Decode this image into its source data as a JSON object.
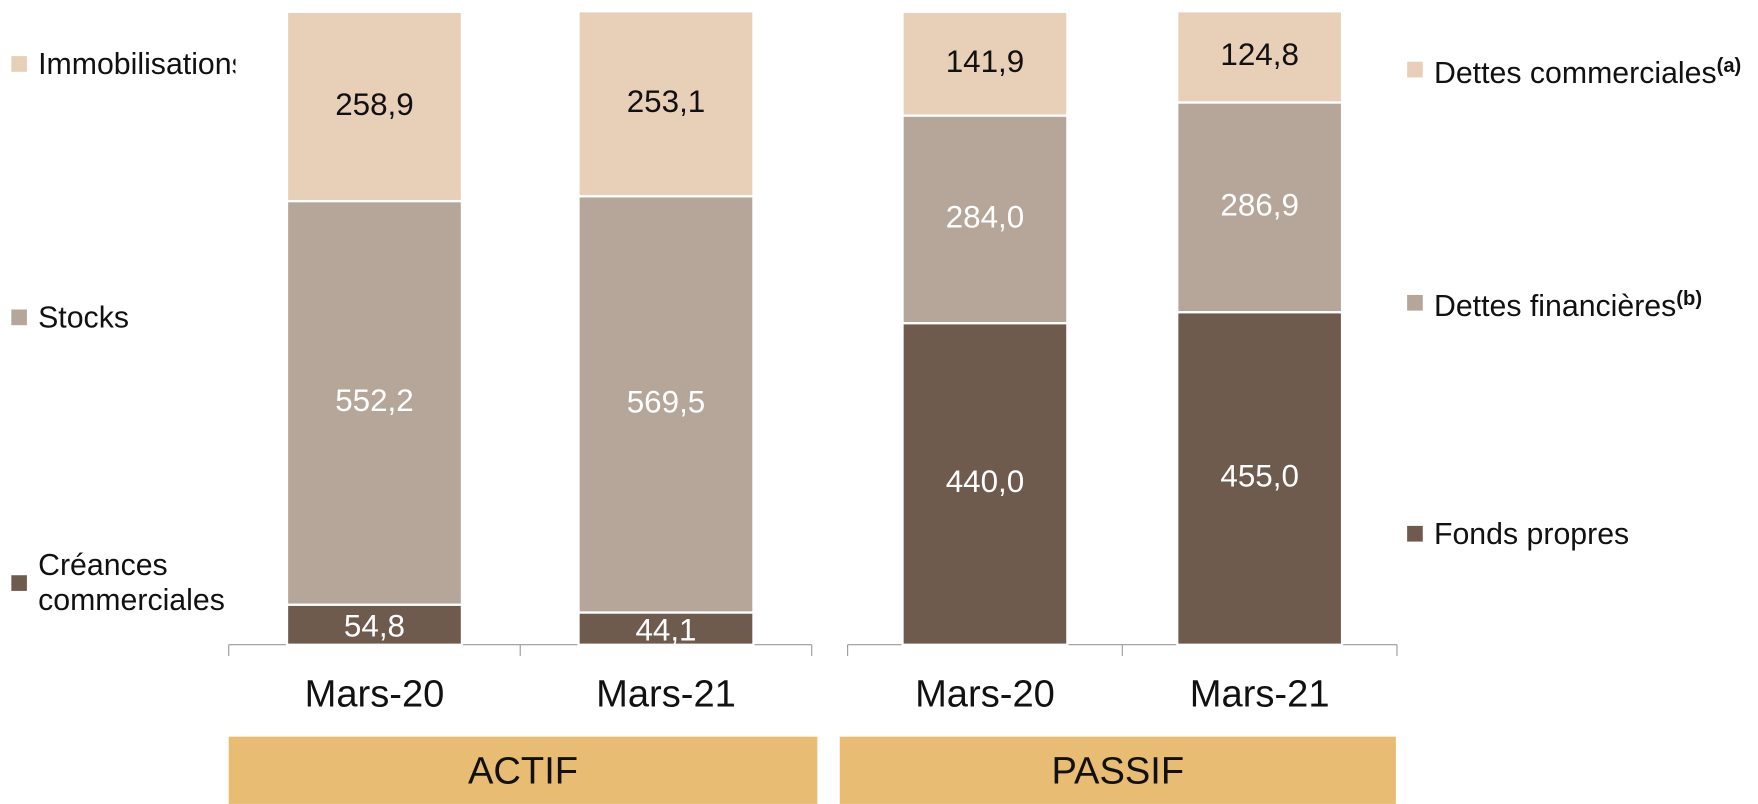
{
  "chart_data": [
    {
      "type": "bar",
      "stacked": true,
      "label": "ACTIF",
      "categories": [
        "Mars-20",
        "Mars-21"
      ],
      "series": [
        {
          "name": "Créances commerciales",
          "color": "#6e5b4e",
          "values": [
            54.8,
            44.1
          ],
          "value_labels": [
            "54,8",
            "44,1"
          ]
        },
        {
          "name": "Stocks",
          "color": "#b5a699",
          "values": [
            552.2,
            569.5
          ],
          "value_labels": [
            "552,2",
            "569,5"
          ]
        },
        {
          "name": "Immobilisations",
          "color": "#e8cfb8",
          "values": [
            258.9,
            253.1
          ],
          "value_labels": [
            "258,9",
            "253,1"
          ]
        }
      ]
    },
    {
      "type": "bar",
      "stacked": true,
      "label": "PASSIF",
      "categories": [
        "Mars-20",
        "Mars-21"
      ],
      "series": [
        {
          "name": "Fonds propres",
          "color": "#6e5b4e",
          "values": [
            440.0,
            455.0
          ],
          "value_labels": [
            "440,0",
            "455,0"
          ]
        },
        {
          "name": "Dettes financières",
          "footnote": "(b)",
          "color": "#b5a699",
          "values": [
            284.0,
            286.9
          ],
          "value_labels": [
            "284,0",
            "286,9"
          ]
        },
        {
          "name": "Dettes commerciales",
          "footnote": "(a)",
          "color": "#e8cfb8",
          "values": [
            141.9,
            124.8
          ],
          "value_labels": [
            "141,9",
            "124,8"
          ]
        }
      ]
    }
  ]
}
